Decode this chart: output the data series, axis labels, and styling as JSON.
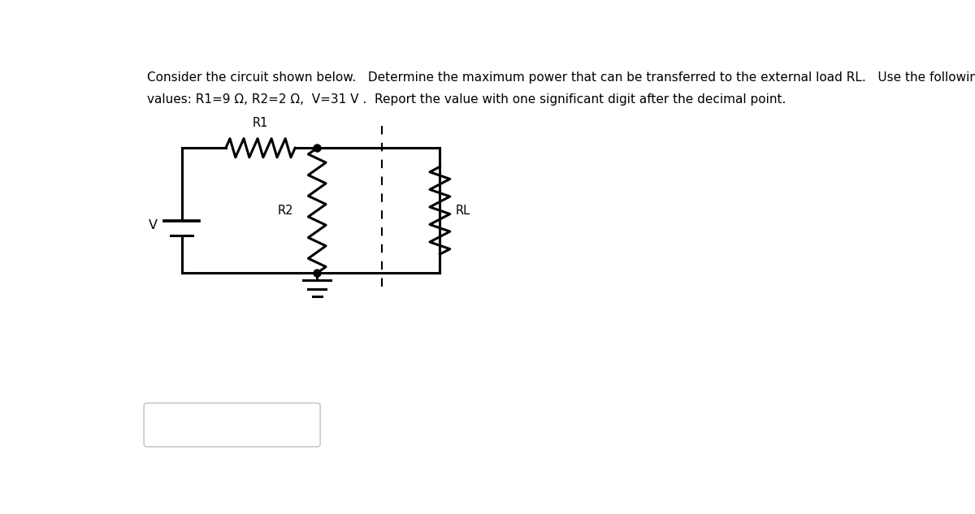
{
  "title_line1": "Consider the circuit shown below.   Determine the maximum power that can be transferred to the external load RL.   Use the following",
  "title_line2": "values: R1=9 Ω, R2=2 Ω,  V=31 V .  Report the value with one significant digit after the decimal point.",
  "bg_color": "#ffffff",
  "line_color": "#000000",
  "text_color": "#000000",
  "font_size_title": 11.0,
  "font_size_labels": 10.5,
  "circuit": {
    "V_label": "V",
    "R1_label": "R1",
    "R2_label": "R2",
    "RL_label": "RL"
  }
}
